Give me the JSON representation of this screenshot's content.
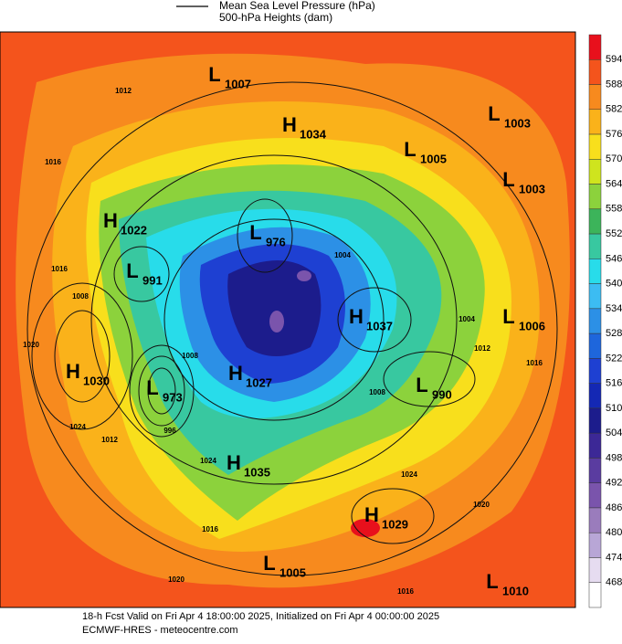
{
  "legend": {
    "line1": "Mean Sea Level Pressure (hPa)",
    "line2": "500-hPa Heights (dam)"
  },
  "colorbar": {
    "ticks": [
      594,
      588,
      582,
      576,
      570,
      564,
      558,
      552,
      546,
      540,
      534,
      528,
      522,
      516,
      510,
      504,
      498,
      492,
      486,
      480,
      474,
      468
    ],
    "colors": [
      "#e8101c",
      "#f4541c",
      "#f78a1e",
      "#fab21a",
      "#f8df1c",
      "#cfe41e",
      "#8cd23c",
      "#3cb45a",
      "#38c8a0",
      "#28dcea",
      "#3cbcf2",
      "#2c90e6",
      "#1e66dc",
      "#1e40d2",
      "#1428b4",
      "#1c1c8c",
      "#3c2896",
      "#5a3ca0",
      "#7a54ac",
      "#9a7cbc",
      "#b8a6d6",
      "#e6dcf0"
    ]
  },
  "centers": [
    {
      "kind": "L",
      "value": 1007
    },
    {
      "kind": "H",
      "value": 1034
    },
    {
      "kind": "L",
      "value": 1003
    },
    {
      "kind": "L",
      "value": 1005
    },
    {
      "kind": "L",
      "value": 1003
    },
    {
      "kind": "H",
      "value": 1022
    },
    {
      "kind": "L",
      "value": 976
    },
    {
      "kind": "L",
      "value": 991
    },
    {
      "kind": "H",
      "value": 1037
    },
    {
      "kind": "L",
      "value": 1006
    },
    {
      "kind": "H",
      "value": 1030
    },
    {
      "kind": "L",
      "value": 973
    },
    {
      "kind": "H",
      "value": 1027
    },
    {
      "kind": "L",
      "value": 990
    },
    {
      "kind": "H",
      "value": 1035
    },
    {
      "kind": "H",
      "value": 1029
    },
    {
      "kind": "L",
      "value": 1005
    },
    {
      "kind": "L",
      "value": 1010
    }
  ],
  "isobar_labels": [
    1012,
    1016,
    1016,
    1008,
    1020,
    1024,
    1008,
    996,
    1024,
    1012,
    1016,
    1004,
    1012,
    1016,
    1024,
    1020,
    1020,
    1016,
    1008,
    1004
  ],
  "footer": {
    "line1": "18-h Fcst Valid on Fri Apr  4 18:00:00 2025, Initialized on Fri Apr  4 00:00:00 2025",
    "line2": "ECMWF-HRES - meteocentre.com"
  }
}
